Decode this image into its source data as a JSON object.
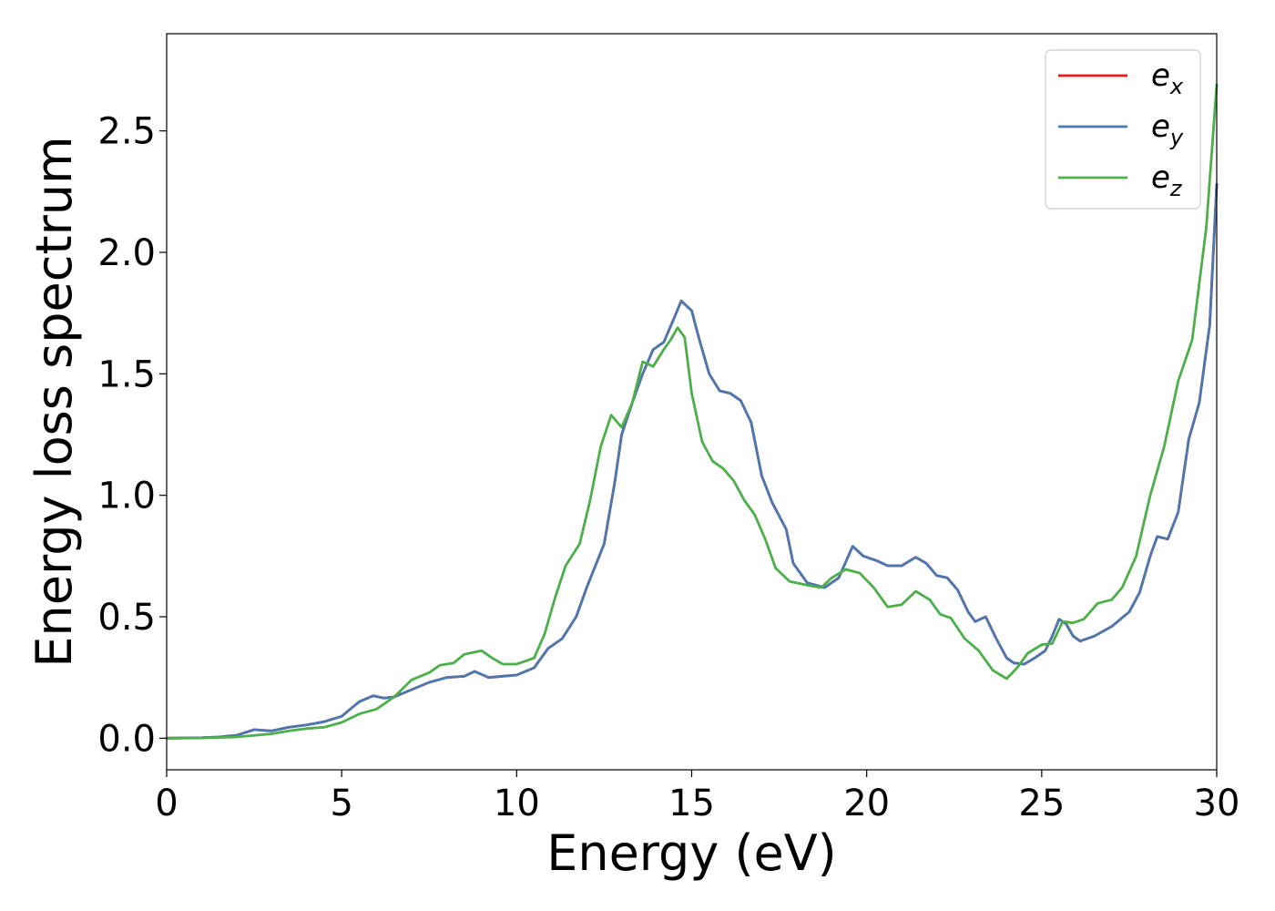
{
  "chart_data": {
    "type": "line",
    "title": "",
    "xlabel": "Energy (eV)",
    "ylabel": "Energy loss spectrum",
    "xlim": [
      0,
      30
    ],
    "ylim": [
      -0.13,
      2.9
    ],
    "xticks": [
      0,
      5,
      10,
      15,
      20,
      25,
      30
    ],
    "yticks": [
      0.0,
      0.5,
      1.0,
      1.5,
      2.0,
      2.5
    ],
    "xtick_labels": [
      "0",
      "5",
      "10",
      "15",
      "20",
      "25",
      "30"
    ],
    "ytick_labels": [
      "0.0",
      "0.5",
      "1.0",
      "1.5",
      "2.0",
      "2.5"
    ],
    "grid": false,
    "legend_position": "top-right",
    "series": [
      {
        "name": "e_x",
        "label_base": "e",
        "label_sub": "x",
        "color": "#e41a1c",
        "points": [
          [
            0,
            0
          ],
          [
            1,
            0.002
          ],
          [
            1.5,
            0.005
          ],
          [
            2,
            0.012
          ],
          [
            2.5,
            0.035
          ],
          [
            3,
            0.03
          ],
          [
            3.5,
            0.045
          ],
          [
            4,
            0.055
          ],
          [
            4.5,
            0.068
          ],
          [
            5,
            0.09
          ],
          [
            5.5,
            0.15
          ],
          [
            5.9,
            0.175
          ],
          [
            6.2,
            0.165
          ],
          [
            6.5,
            0.17
          ],
          [
            7,
            0.2
          ],
          [
            7.5,
            0.23
          ],
          [
            8,
            0.25
          ],
          [
            8.5,
            0.255
          ],
          [
            8.8,
            0.275
          ],
          [
            9.2,
            0.25
          ],
          [
            9.6,
            0.255
          ],
          [
            10,
            0.26
          ],
          [
            10.5,
            0.29
          ],
          [
            10.9,
            0.37
          ],
          [
            11.3,
            0.41
          ],
          [
            11.7,
            0.5
          ],
          [
            12,
            0.62
          ],
          [
            12.5,
            0.8
          ],
          [
            12.8,
            1.05
          ],
          [
            13,
            1.25
          ],
          [
            13.3,
            1.38
          ],
          [
            13.6,
            1.5
          ],
          [
            13.9,
            1.6
          ],
          [
            14.2,
            1.63
          ],
          [
            14.5,
            1.73
          ],
          [
            14.7,
            1.8
          ],
          [
            15,
            1.76
          ],
          [
            15.2,
            1.65
          ],
          [
            15.5,
            1.5
          ],
          [
            15.8,
            1.43
          ],
          [
            16.1,
            1.42
          ],
          [
            16.4,
            1.39
          ],
          [
            16.7,
            1.3
          ],
          [
            17,
            1.08
          ],
          [
            17.3,
            0.97
          ],
          [
            17.7,
            0.86
          ],
          [
            17.9,
            0.72
          ],
          [
            18.3,
            0.64
          ],
          [
            18.8,
            0.62
          ],
          [
            19.2,
            0.66
          ],
          [
            19.6,
            0.79
          ],
          [
            19.9,
            0.75
          ],
          [
            20.3,
            0.73
          ],
          [
            20.6,
            0.71
          ],
          [
            21,
            0.71
          ],
          [
            21.4,
            0.745
          ],
          [
            21.7,
            0.72
          ],
          [
            22,
            0.67
          ],
          [
            22.3,
            0.66
          ],
          [
            22.6,
            0.61
          ],
          [
            22.9,
            0.52
          ],
          [
            23.1,
            0.48
          ],
          [
            23.4,
            0.5
          ],
          [
            23.7,
            0.41
          ],
          [
            24,
            0.33
          ],
          [
            24.2,
            0.31
          ],
          [
            24.5,
            0.305
          ],
          [
            24.8,
            0.33
          ],
          [
            25.1,
            0.36
          ],
          [
            25.3,
            0.42
          ],
          [
            25.5,
            0.49
          ],
          [
            25.7,
            0.47
          ],
          [
            25.9,
            0.42
          ],
          [
            26.1,
            0.4
          ],
          [
            26.5,
            0.42
          ],
          [
            27,
            0.46
          ],
          [
            27.5,
            0.52
          ],
          [
            27.8,
            0.6
          ],
          [
            28.1,
            0.75
          ],
          [
            28.3,
            0.83
          ],
          [
            28.6,
            0.82
          ],
          [
            28.9,
            0.93
          ],
          [
            29.2,
            1.23
          ],
          [
            29.5,
            1.38
          ],
          [
            29.8,
            1.7
          ],
          [
            30,
            2.28
          ]
        ]
      },
      {
        "name": "e_y",
        "label_base": "e",
        "label_sub": "y",
        "color": "#4a78b0",
        "points": [
          [
            0,
            0
          ],
          [
            1,
            0.002
          ],
          [
            1.5,
            0.005
          ],
          [
            2,
            0.012
          ],
          [
            2.5,
            0.035
          ],
          [
            3,
            0.03
          ],
          [
            3.5,
            0.045
          ],
          [
            4,
            0.055
          ],
          [
            4.5,
            0.068
          ],
          [
            5,
            0.09
          ],
          [
            5.5,
            0.15
          ],
          [
            5.9,
            0.175
          ],
          [
            6.2,
            0.165
          ],
          [
            6.5,
            0.17
          ],
          [
            7,
            0.2
          ],
          [
            7.5,
            0.23
          ],
          [
            8,
            0.25
          ],
          [
            8.5,
            0.255
          ],
          [
            8.8,
            0.275
          ],
          [
            9.2,
            0.25
          ],
          [
            9.6,
            0.255
          ],
          [
            10,
            0.26
          ],
          [
            10.5,
            0.29
          ],
          [
            10.9,
            0.37
          ],
          [
            11.3,
            0.41
          ],
          [
            11.7,
            0.5
          ],
          [
            12,
            0.62
          ],
          [
            12.5,
            0.8
          ],
          [
            12.8,
            1.05
          ],
          [
            13,
            1.25
          ],
          [
            13.3,
            1.38
          ],
          [
            13.6,
            1.5
          ],
          [
            13.9,
            1.6
          ],
          [
            14.2,
            1.63
          ],
          [
            14.5,
            1.73
          ],
          [
            14.7,
            1.8
          ],
          [
            15,
            1.76
          ],
          [
            15.2,
            1.65
          ],
          [
            15.5,
            1.5
          ],
          [
            15.8,
            1.43
          ],
          [
            16.1,
            1.42
          ],
          [
            16.4,
            1.39
          ],
          [
            16.7,
            1.3
          ],
          [
            17,
            1.08
          ],
          [
            17.3,
            0.97
          ],
          [
            17.7,
            0.86
          ],
          [
            17.9,
            0.72
          ],
          [
            18.3,
            0.64
          ],
          [
            18.8,
            0.62
          ],
          [
            19.2,
            0.66
          ],
          [
            19.6,
            0.79
          ],
          [
            19.9,
            0.75
          ],
          [
            20.3,
            0.73
          ],
          [
            20.6,
            0.71
          ],
          [
            21,
            0.71
          ],
          [
            21.4,
            0.745
          ],
          [
            21.7,
            0.72
          ],
          [
            22,
            0.67
          ],
          [
            22.3,
            0.66
          ],
          [
            22.6,
            0.61
          ],
          [
            22.9,
            0.52
          ],
          [
            23.1,
            0.48
          ],
          [
            23.4,
            0.5
          ],
          [
            23.7,
            0.41
          ],
          [
            24,
            0.33
          ],
          [
            24.2,
            0.31
          ],
          [
            24.5,
            0.305
          ],
          [
            24.8,
            0.33
          ],
          [
            25.1,
            0.36
          ],
          [
            25.3,
            0.42
          ],
          [
            25.5,
            0.49
          ],
          [
            25.7,
            0.47
          ],
          [
            25.9,
            0.42
          ],
          [
            26.1,
            0.4
          ],
          [
            26.5,
            0.42
          ],
          [
            27,
            0.46
          ],
          [
            27.5,
            0.52
          ],
          [
            27.8,
            0.6
          ],
          [
            28.1,
            0.75
          ],
          [
            28.3,
            0.83
          ],
          [
            28.6,
            0.82
          ],
          [
            28.9,
            0.93
          ],
          [
            29.2,
            1.23
          ],
          [
            29.5,
            1.38
          ],
          [
            29.8,
            1.7
          ],
          [
            30,
            2.28
          ]
        ]
      },
      {
        "name": "e_z",
        "label_base": "e",
        "label_sub": "z",
        "color": "#4daf4a",
        "points": [
          [
            0,
            0
          ],
          [
            1,
            0.001
          ],
          [
            2,
            0.005
          ],
          [
            3,
            0.018
          ],
          [
            3.5,
            0.03
          ],
          [
            4,
            0.04
          ],
          [
            4.5,
            0.045
          ],
          [
            5,
            0.065
          ],
          [
            5.5,
            0.1
          ],
          [
            6,
            0.12
          ],
          [
            6.5,
            0.17
          ],
          [
            7,
            0.24
          ],
          [
            7.5,
            0.27
          ],
          [
            7.8,
            0.3
          ],
          [
            8.2,
            0.31
          ],
          [
            8.5,
            0.345
          ],
          [
            9,
            0.36
          ],
          [
            9.3,
            0.33
          ],
          [
            9.6,
            0.305
          ],
          [
            10,
            0.305
          ],
          [
            10.5,
            0.33
          ],
          [
            10.8,
            0.43
          ],
          [
            11.1,
            0.58
          ],
          [
            11.4,
            0.71
          ],
          [
            11.8,
            0.8
          ],
          [
            12.1,
            0.98
          ],
          [
            12.4,
            1.2
          ],
          [
            12.7,
            1.33
          ],
          [
            13,
            1.28
          ],
          [
            13.3,
            1.38
          ],
          [
            13.6,
            1.55
          ],
          [
            13.9,
            1.53
          ],
          [
            14.2,
            1.6
          ],
          [
            14.4,
            1.64
          ],
          [
            14.6,
            1.69
          ],
          [
            14.8,
            1.65
          ],
          [
            15,
            1.42
          ],
          [
            15.3,
            1.22
          ],
          [
            15.6,
            1.14
          ],
          [
            15.9,
            1.11
          ],
          [
            16.2,
            1.06
          ],
          [
            16.5,
            0.98
          ],
          [
            16.8,
            0.92
          ],
          [
            17.1,
            0.82
          ],
          [
            17.4,
            0.7
          ],
          [
            17.8,
            0.645
          ],
          [
            18.3,
            0.63
          ],
          [
            18.7,
            0.62
          ],
          [
            19,
            0.66
          ],
          [
            19.4,
            0.695
          ],
          [
            19.8,
            0.68
          ],
          [
            20.2,
            0.62
          ],
          [
            20.6,
            0.54
          ],
          [
            21,
            0.55
          ],
          [
            21.4,
            0.605
          ],
          [
            21.8,
            0.57
          ],
          [
            22.1,
            0.51
          ],
          [
            22.4,
            0.495
          ],
          [
            22.8,
            0.41
          ],
          [
            23.2,
            0.36
          ],
          [
            23.6,
            0.28
          ],
          [
            24,
            0.245
          ],
          [
            24.3,
            0.29
          ],
          [
            24.6,
            0.35
          ],
          [
            25,
            0.385
          ],
          [
            25.3,
            0.39
          ],
          [
            25.6,
            0.48
          ],
          [
            25.9,
            0.475
          ],
          [
            26.2,
            0.49
          ],
          [
            26.6,
            0.555
          ],
          [
            27,
            0.57
          ],
          [
            27.3,
            0.62
          ],
          [
            27.7,
            0.75
          ],
          [
            28.1,
            1.0
          ],
          [
            28.5,
            1.2
          ],
          [
            28.9,
            1.47
          ],
          [
            29.3,
            1.64
          ],
          [
            29.7,
            2.1
          ],
          [
            30,
            2.69
          ]
        ]
      }
    ]
  }
}
